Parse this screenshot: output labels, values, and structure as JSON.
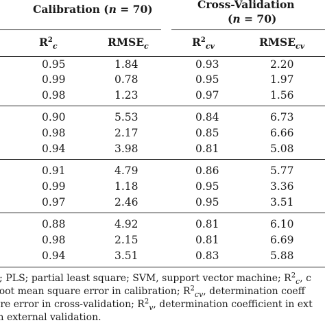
{
  "header": {
    "calibration_label": "Calibration (",
    "calibration_n": "n",
    "calibration_suffix": " = 70)",
    "crossval_line1": "Cross-Validation",
    "crossval_n_prefix": "(",
    "crossval_n": "n",
    "crossval_suffix": " = 70)"
  },
  "columns": {
    "r2c_base": "R",
    "r2c_sup": "2",
    "r2c_sub": "c",
    "rmsec_base": "RMSE",
    "rmsec_sub": "c",
    "r2cv_base": "R",
    "r2cv_sup": "2",
    "r2cv_sub": "cv",
    "rmsecv_base": "RMSE",
    "rmsecv_sub": "cv"
  },
  "groups": [
    {
      "rows": [
        {
          "r2c": "0.95",
          "rmsec": "1.84",
          "r2cv": "0.93",
          "rmsecv": "2.20"
        },
        {
          "r2c": "0.99",
          "rmsec": "0.78",
          "r2cv": "0.95",
          "rmsecv": "1.97"
        },
        {
          "r2c": "0.98",
          "rmsec": "1.23",
          "r2cv": "0.97",
          "rmsecv": "1.56"
        }
      ]
    },
    {
      "rows": [
        {
          "r2c": "0.90",
          "rmsec": "5.53",
          "r2cv": "0.84",
          "rmsecv": "6.73"
        },
        {
          "r2c": "0.98",
          "rmsec": "2.17",
          "r2cv": "0.85",
          "rmsecv": "6.66"
        },
        {
          "r2c": "0.94",
          "rmsec": "3.98",
          "r2cv": "0.81",
          "rmsecv": "5.08"
        }
      ]
    },
    {
      "rows": [
        {
          "r2c": "0.91",
          "rmsec": "4.79",
          "r2cv": "0.86",
          "rmsecv": "5.77"
        },
        {
          "r2c": "0.99",
          "rmsec": "1.18",
          "r2cv": "0.95",
          "rmsecv": "3.36"
        },
        {
          "r2c": "0.97",
          "rmsec": "2.46",
          "r2cv": "0.95",
          "rmsecv": "3.51"
        }
      ]
    },
    {
      "rows": [
        {
          "r2c": "0.88",
          "rmsec": "4.92",
          "r2cv": "0.81",
          "rmsecv": "6.10"
        },
        {
          "r2c": "0.98",
          "rmsec": "2.15",
          "r2cv": "0.81",
          "rmsecv": "6.69"
        },
        {
          "r2c": "0.94",
          "rmsec": "3.51",
          "r2cv": "0.83",
          "rmsecv": "5.88"
        }
      ]
    }
  ],
  "footnote": {
    "line1_a": "s; PLS; partial least square; SVM, support vector machine; R",
    "line1_sup": "2",
    "line1_sub": "c",
    "line1_b": ", c",
    "line2_a": "root mean square error in calibration; R",
    "line2_sup": "2",
    "line2_sub": "cv",
    "line2_b": ", determination coeff",
    "line3_a": "are error in cross-validation; R",
    "line3_sup": "2",
    "line3_sub": "v",
    "line3_b": ", determination coefficient in ext",
    "line4": "in external validation."
  }
}
